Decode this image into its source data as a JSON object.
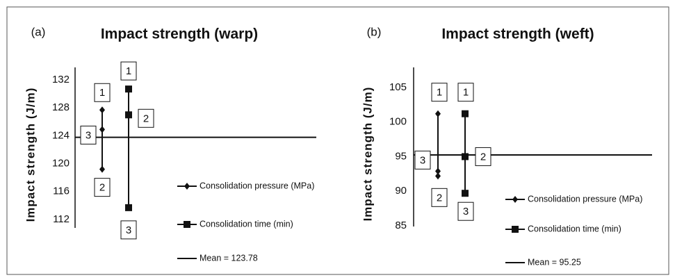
{
  "chart_data": [
    {
      "type": "line",
      "panel": "(a)",
      "title": "Impact strength (warp)",
      "ylabel": "Impact strength (J/m)",
      "ylim": [
        110.8,
        133.8
      ],
      "yticks": [
        112,
        116,
        120,
        124,
        128,
        132
      ],
      "series": [
        {
          "name": "Consolidation pressure (MPa)",
          "color": "#111111",
          "marker": "diamond",
          "levels": [
            "1",
            "2",
            "3"
          ],
          "values": [
            127.7,
            119.2,
            124.9
          ]
        },
        {
          "name": "Consolidation time (min)",
          "color": "#111111",
          "marker": "square",
          "levels": [
            "1",
            "2",
            "3"
          ],
          "values": [
            130.7,
            127.0,
            113.7
          ]
        }
      ],
      "mean": {
        "name": "Mean = 123.78",
        "value": 123.78,
        "color": "#111111"
      }
    },
    {
      "type": "line",
      "panel": "(b)",
      "title": "Impact strength (weft)",
      "ylabel": "Impact strength (J/m)",
      "ylim": [
        84.9,
        107.9
      ],
      "yticks": [
        85,
        90,
        95,
        100,
        105
      ],
      "series": [
        {
          "name": "Consolidation pressure (MPa)",
          "color": "#111111",
          "marker": "diamond",
          "levels": [
            "1",
            "2",
            "3"
          ],
          "values": [
            101.2,
            92.2,
            92.9
          ]
        },
        {
          "name": "Consolidation time (min)",
          "color": "#111111",
          "marker": "square",
          "levels": [
            "1",
            "2",
            "3"
          ],
          "values": [
            101.2,
            95.0,
            89.7
          ]
        }
      ],
      "mean": {
        "name": "Mean = 95.25",
        "value": 95.25,
        "color": "#111111"
      }
    }
  ]
}
